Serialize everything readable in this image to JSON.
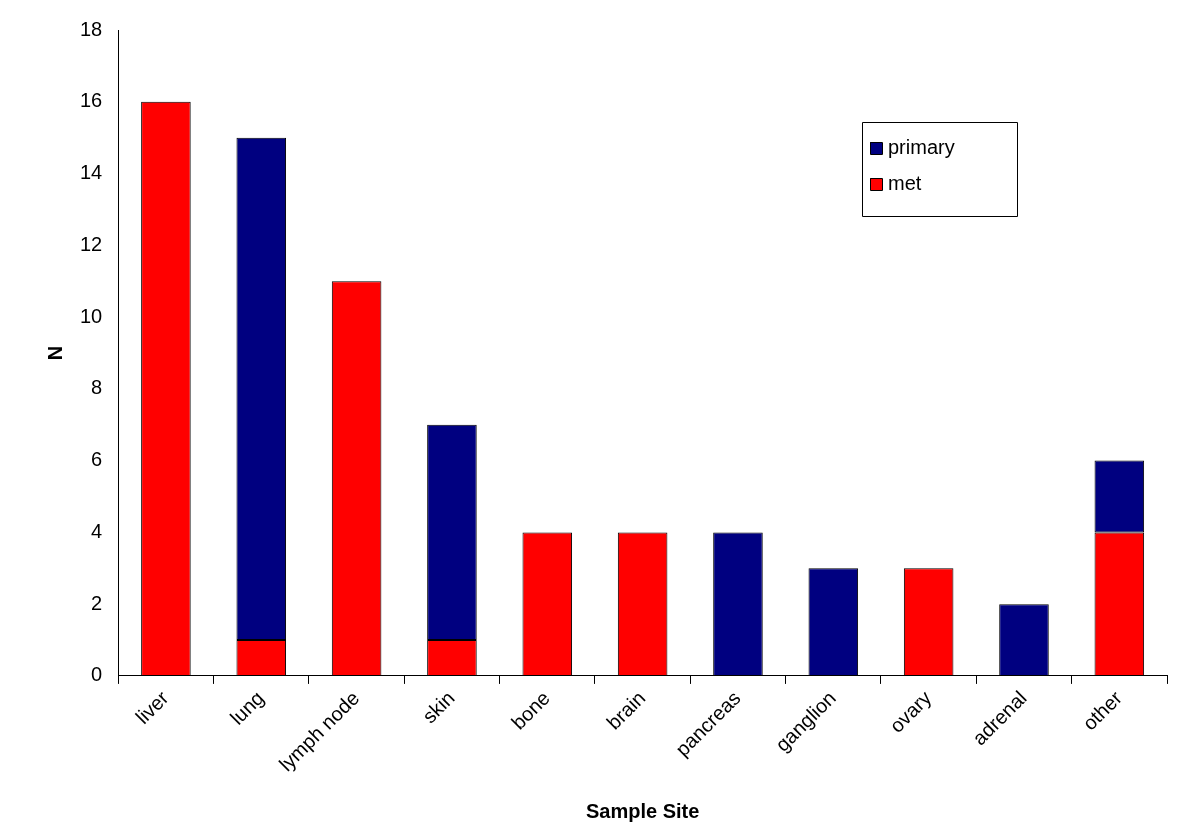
{
  "chart_data": {
    "type": "bar",
    "stacked": true,
    "xlabel": "Sample Site",
    "ylabel": "N",
    "categories": [
      "liver",
      "lung",
      "lymph node",
      "skin",
      "bone",
      "brain",
      "pancreas",
      "ganglion",
      "ovary",
      "adrenal",
      "other"
    ],
    "series": [
      {
        "name": "met",
        "color": "#ff0000",
        "values": [
          16,
          1,
          11,
          1,
          4,
          4,
          0,
          0,
          3,
          0,
          4
        ]
      },
      {
        "name": "primary",
        "color": "#000080",
        "values": [
          0,
          14,
          0,
          6,
          0,
          0,
          4,
          3,
          0,
          2,
          2
        ]
      }
    ],
    "ylim": [
      0,
      18
    ],
    "yticks": [
      0,
      2,
      4,
      6,
      8,
      10,
      12,
      14,
      16,
      18
    ],
    "grid": false,
    "legend": "top right"
  }
}
